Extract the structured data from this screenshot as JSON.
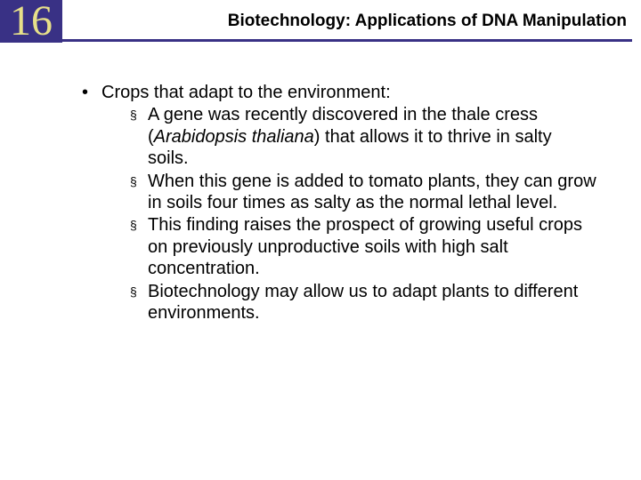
{
  "header": {
    "chapter_number": "16",
    "title": "Biotechnology: Applications of DNA Manipulation",
    "chapter_bg": "#393185",
    "chapter_fg": "#e7e089",
    "underline_color": "#393185"
  },
  "content": {
    "main_bullet": "Crops that adapt to the environment:",
    "sub_bullets": [
      {
        "pre": "A gene was recently discovered in the thale cress (",
        "italic": "Arabidopsis thaliana",
        "post": ") that allows it to thrive in salty soils."
      },
      {
        "pre": "When this gene is added to tomato plants, they can grow in soils four times as salty as the normal lethal level.",
        "italic": "",
        "post": ""
      },
      {
        "pre": "This finding raises the prospect of growing useful crops on previously unproductive soils with high salt concentration.",
        "italic": "",
        "post": ""
      },
      {
        "pre": "Biotechnology may allow us to adapt plants to different environments.",
        "italic": "",
        "post": ""
      }
    ],
    "bullet_marker": "•",
    "sub_marker": "§"
  },
  "style": {
    "body_fontsize": 20,
    "title_fontsize": 19,
    "chapter_fontsize": 48
  }
}
